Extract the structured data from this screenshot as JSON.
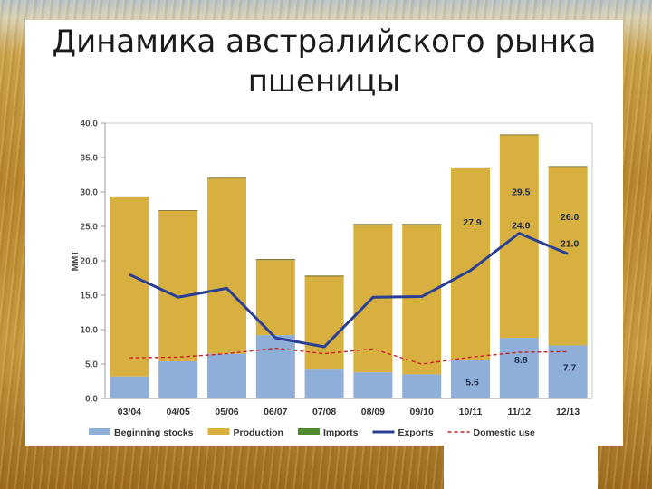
{
  "title": {
    "line1": "Динамика австралийского рынка",
    "line2": "пшеницы"
  },
  "chart_data": {
    "type": "bar",
    "ylabel": "MMT",
    "ylim": [
      0,
      40
    ],
    "yticks": [
      "0.0",
      "5.0",
      "10.0",
      "15.0",
      "20.0",
      "25.0",
      "30.0",
      "35.0",
      "40.0"
    ],
    "categories": [
      "03/04",
      "04/05",
      "05/06",
      "06/07",
      "07/08",
      "08/09",
      "09/10",
      "10/11",
      "11/12",
      "12/13"
    ],
    "series": [
      {
        "name": "Beginning stocks",
        "kind": "bar",
        "color": "#8fafd8",
        "values": [
          3.2,
          5.4,
          6.5,
          9.2,
          4.2,
          3.8,
          3.5,
          5.6,
          8.8,
          7.7
        ]
      },
      {
        "name": "Production",
        "kind": "bar",
        "color": "#d8b040",
        "values": [
          26.1,
          21.9,
          25.5,
          10.9,
          13.5,
          21.5,
          21.8,
          27.9,
          29.5,
          26.0
        ]
      },
      {
        "name": "Imports",
        "kind": "bar",
        "color": "#4e8a2e",
        "values": [
          0,
          0,
          0,
          0.1,
          0.1,
          0,
          0,
          0,
          0,
          0
        ]
      },
      {
        "name": "Exports",
        "kind": "line",
        "color": "#2a3f94",
        "values": [
          18.0,
          14.7,
          16.0,
          8.8,
          7.5,
          14.7,
          14.8,
          18.6,
          24.0,
          21.0
        ]
      },
      {
        "name": "Domestic use",
        "kind": "dashed-line",
        "color": "#cc2222",
        "values": [
          5.9,
          6.0,
          6.5,
          7.3,
          6.5,
          7.2,
          5.0,
          6.0,
          6.7,
          6.8
        ]
      }
    ],
    "data_labels": [
      {
        "category": "10/11",
        "series": "Beginning stocks",
        "text": "5.6"
      },
      {
        "category": "11/12",
        "series": "Beginning stocks",
        "text": "8.8"
      },
      {
        "category": "12/13",
        "series": "Beginning stocks",
        "text": "7.7"
      },
      {
        "category": "10/11",
        "series": "Production",
        "text": "27.9"
      },
      {
        "category": "11/12",
        "series": "Production",
        "text": "29.5"
      },
      {
        "category": "12/13",
        "series": "Production",
        "text": "26.0"
      },
      {
        "category": "11/12",
        "series": "Exports",
        "text": "24.0"
      },
      {
        "category": "12/13",
        "series": "Exports",
        "text": "21.0"
      }
    ],
    "legend_position": "bottom",
    "grid": false
  }
}
